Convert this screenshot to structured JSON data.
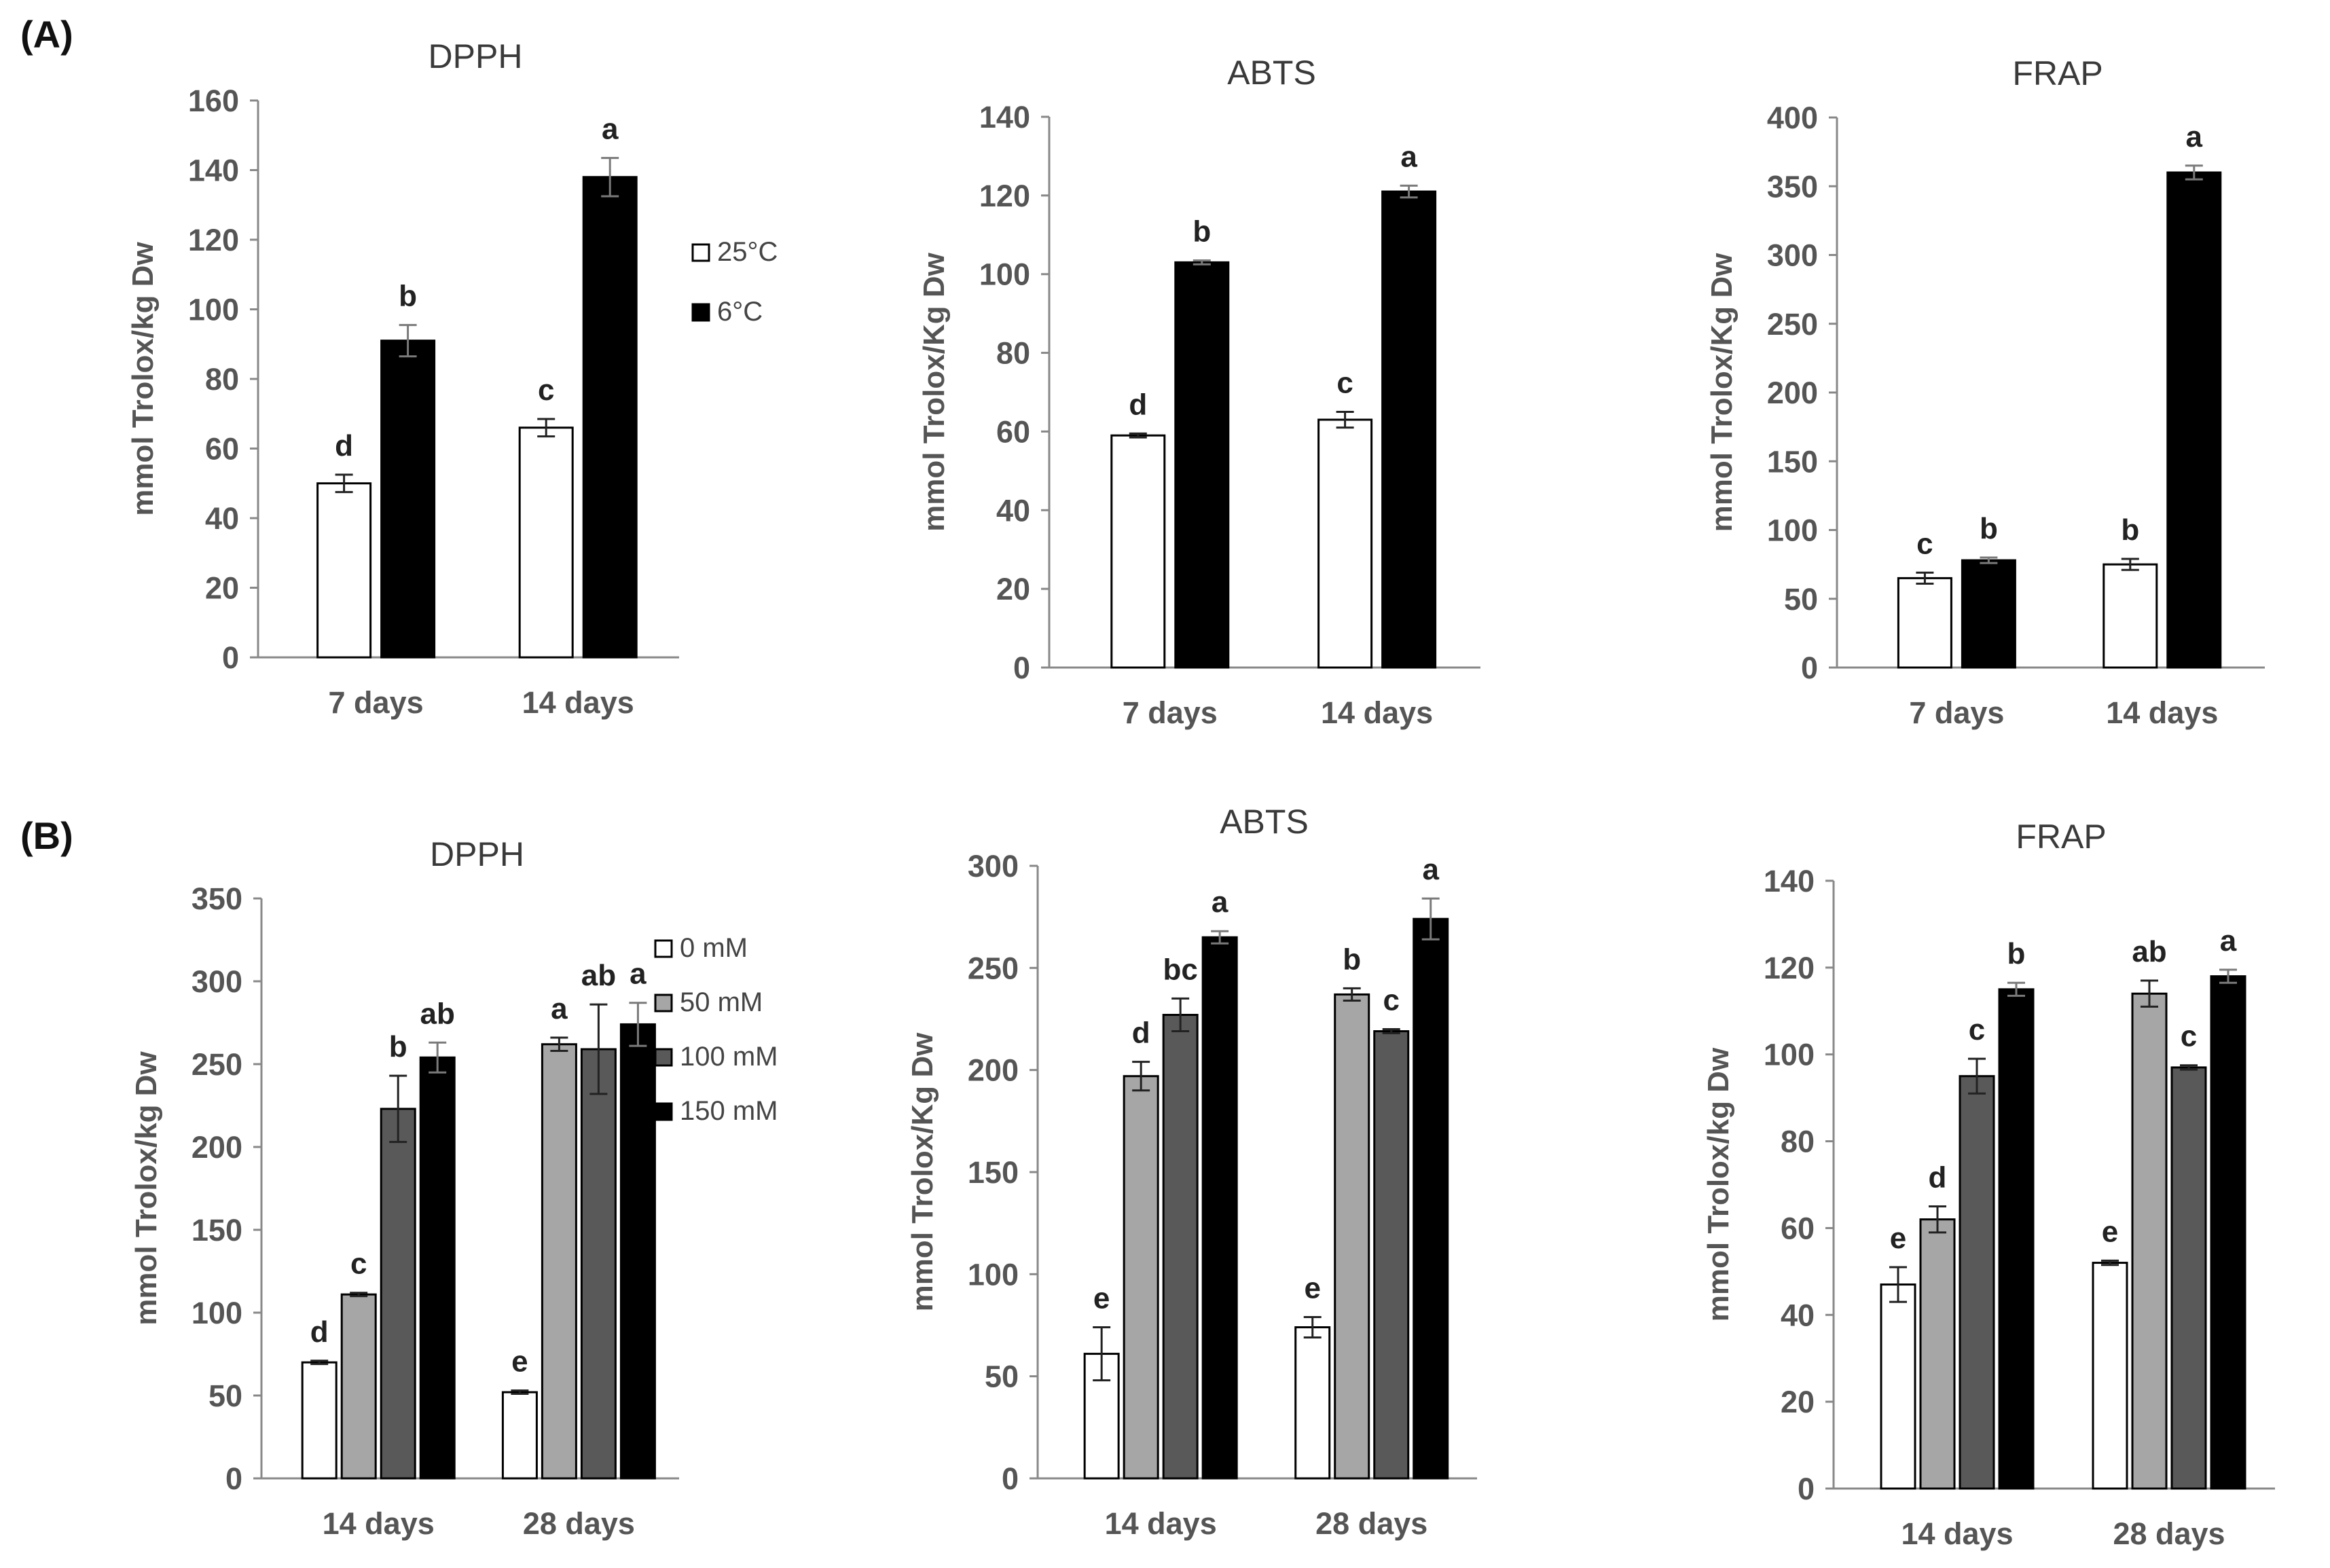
{
  "panels": {
    "a_label": "(A)",
    "b_label": "(B)"
  },
  "legend_a": {
    "series": [
      {
        "name": "25°C",
        "color": "#ffffff"
      },
      {
        "name": "6°C",
        "color": "#000000"
      }
    ]
  },
  "legend_b": {
    "series": [
      {
        "name": "0 mM",
        "color": "#ffffff"
      },
      {
        "name": "50 mM",
        "color": "#a6a6a6"
      },
      {
        "name": "100 mM",
        "color": "#595959"
      },
      {
        "name": "150 mM",
        "color": "#000000"
      }
    ]
  },
  "chart_data": [
    {
      "id": "a-dpph",
      "type": "bar",
      "title": "DPPH",
      "ylabel": "mmol Trolox/kg Dw",
      "xlabel": "",
      "ylim": [
        0,
        160
      ],
      "yticks": [
        0,
        20,
        40,
        60,
        80,
        100,
        120,
        140,
        160
      ],
      "categories": [
        "7 days",
        "14 days"
      ],
      "series": [
        {
          "name": "25°C",
          "color": "#ffffff",
          "values": [
            50,
            66
          ],
          "errors": [
            2.5,
            2.5
          ],
          "labels": [
            "d",
            "c"
          ]
        },
        {
          "name": "6°C",
          "color": "#000000",
          "values": [
            91,
            138
          ],
          "errors": [
            4.5,
            5.5
          ],
          "labels": [
            "b",
            "a"
          ]
        }
      ]
    },
    {
      "id": "a-abts",
      "type": "bar",
      "title": "ABTS",
      "ylabel": "mmol Trolox/Kg  Dw",
      "xlabel": "",
      "ylim": [
        0,
        140
      ],
      "yticks": [
        0,
        20,
        40,
        60,
        80,
        100,
        120,
        140
      ],
      "categories": [
        "7 days",
        "14 days"
      ],
      "series": [
        {
          "name": "25°C",
          "color": "#ffffff",
          "values": [
            59,
            63
          ],
          "errors": [
            0.5,
            2
          ],
          "labels": [
            "d",
            "c"
          ]
        },
        {
          "name": "6°C",
          "color": "#000000",
          "values": [
            103,
            121
          ],
          "errors": [
            0.5,
            1.5
          ],
          "labels": [
            "b",
            "a"
          ]
        }
      ]
    },
    {
      "id": "a-frap",
      "type": "bar",
      "title": "FRAP",
      "ylabel": "mmol Trolox/Kg  Dw",
      "xlabel": "",
      "ylim": [
        0,
        400
      ],
      "yticks": [
        0,
        50,
        100,
        150,
        200,
        250,
        300,
        350,
        400
      ],
      "categories": [
        "7 days",
        "14 days"
      ],
      "series": [
        {
          "name": "25°C",
          "color": "#ffffff",
          "values": [
            65,
            75
          ],
          "errors": [
            4,
            4
          ],
          "labels": [
            "c",
            "b"
          ]
        },
        {
          "name": "6°C",
          "color": "#000000",
          "values": [
            78,
            360
          ],
          "errors": [
            2,
            5
          ],
          "labels": [
            "b",
            "a"
          ]
        }
      ]
    },
    {
      "id": "b-dpph",
      "type": "bar",
      "title": "DPPH",
      "ylabel": "mmol Trolox/kg  Dw",
      "xlabel": "",
      "ylim": [
        0,
        350
      ],
      "yticks": [
        0,
        50,
        100,
        150,
        200,
        250,
        300,
        350
      ],
      "categories": [
        "14 days",
        "28 days"
      ],
      "series": [
        {
          "name": "0 mM",
          "color": "#ffffff",
          "values": [
            70,
            52
          ],
          "errors": [
            1,
            1
          ],
          "labels": [
            "d",
            "e"
          ]
        },
        {
          "name": "50 mM",
          "color": "#a6a6a6",
          "values": [
            111,
            262
          ],
          "errors": [
            1,
            4
          ],
          "labels": [
            "c",
            "a"
          ]
        },
        {
          "name": "100 mM",
          "color": "#595959",
          "values": [
            223,
            259
          ],
          "errors": [
            20,
            27
          ],
          "labels": [
            "b",
            "ab"
          ]
        },
        {
          "name": "150 mM",
          "color": "#000000",
          "values": [
            254,
            274
          ],
          "errors": [
            9,
            13
          ],
          "labels": [
            "ab",
            "a"
          ]
        }
      ]
    },
    {
      "id": "b-abts",
      "type": "bar",
      "title": "ABTS",
      "ylabel": "mmol Trolox/Kg  Dw",
      "xlabel": "",
      "ylim": [
        0,
        300
      ],
      "yticks": [
        0,
        50,
        100,
        150,
        200,
        250,
        300
      ],
      "categories": [
        "14 days",
        "28 days"
      ],
      "series": [
        {
          "name": "0 mM",
          "color": "#ffffff",
          "values": [
            61,
            74
          ],
          "errors": [
            13,
            5
          ],
          "labels": [
            "e",
            "e"
          ]
        },
        {
          "name": "50 mM",
          "color": "#a6a6a6",
          "values": [
            197,
            237
          ],
          "errors": [
            7,
            3
          ],
          "labels": [
            "d",
            "b"
          ]
        },
        {
          "name": "100 mM",
          "color": "#595959",
          "values": [
            227,
            219
          ],
          "errors": [
            8,
            1
          ],
          "labels": [
            "bc",
            "c"
          ]
        },
        {
          "name": "150 mM",
          "color": "#000000",
          "values": [
            265,
            274
          ],
          "errors": [
            3,
            10
          ],
          "labels": [
            "a",
            "a"
          ]
        }
      ]
    },
    {
      "id": "b-frap",
      "type": "bar",
      "title": "FRAP",
      "ylabel": "mmol Trolox/kg Dw",
      "xlabel": "",
      "ylim": [
        0,
        140
      ],
      "yticks": [
        0,
        20,
        40,
        60,
        80,
        100,
        120,
        140
      ],
      "categories": [
        "14 days",
        "28 days"
      ],
      "series": [
        {
          "name": "0 mM",
          "color": "#ffffff",
          "values": [
            47,
            52
          ],
          "errors": [
            4,
            0.5
          ],
          "labels": [
            "e",
            "e"
          ]
        },
        {
          "name": "50 mM",
          "color": "#a6a6a6",
          "values": [
            62,
            114
          ],
          "errors": [
            3,
            3
          ],
          "labels": [
            "d",
            "ab"
          ]
        },
        {
          "name": "100 mM",
          "color": "#595959",
          "values": [
            95,
            97
          ],
          "errors": [
            4,
            0.5
          ],
          "labels": [
            "c",
            "c"
          ]
        },
        {
          "name": "150 mM",
          "color": "#000000",
          "values": [
            115,
            118
          ],
          "errors": [
            1.5,
            1.5
          ],
          "labels": [
            "b",
            "a"
          ]
        }
      ]
    }
  ]
}
